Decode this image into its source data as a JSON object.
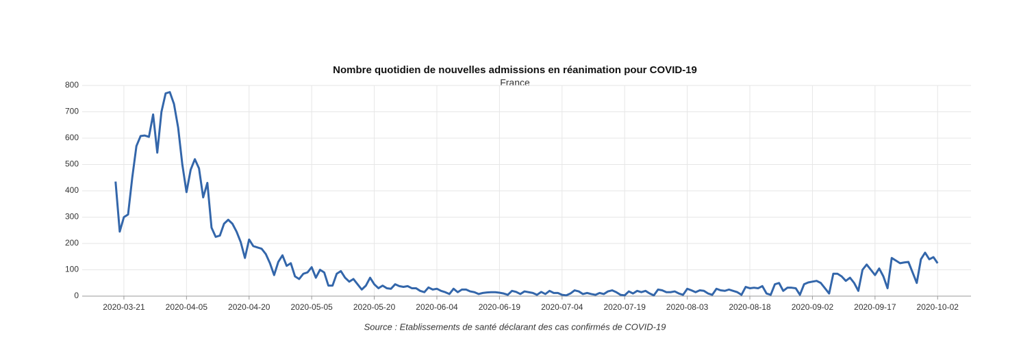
{
  "chart_data": {
    "type": "line",
    "title": "Nombre quotidien de nouvelles admissions en réanimation pour COVID-19",
    "subtitle": "France",
    "source": "Source : Etablissements de santé déclarant des cas confirmés de COVID-19",
    "x": [
      "2020-03-19",
      "2020-03-20",
      "2020-03-21",
      "2020-03-22",
      "2020-03-23",
      "2020-03-24",
      "2020-03-25",
      "2020-03-26",
      "2020-03-27",
      "2020-03-28",
      "2020-03-29",
      "2020-03-30",
      "2020-03-31",
      "2020-04-01",
      "2020-04-02",
      "2020-04-03",
      "2020-04-04",
      "2020-04-05",
      "2020-04-06",
      "2020-04-07",
      "2020-04-08",
      "2020-04-09",
      "2020-04-10",
      "2020-04-11",
      "2020-04-12",
      "2020-04-13",
      "2020-04-14",
      "2020-04-15",
      "2020-04-16",
      "2020-04-17",
      "2020-04-18",
      "2020-04-19",
      "2020-04-20",
      "2020-04-21",
      "2020-04-22",
      "2020-04-23",
      "2020-04-24",
      "2020-04-25",
      "2020-04-26",
      "2020-04-27",
      "2020-04-28",
      "2020-04-29",
      "2020-04-30",
      "2020-05-01",
      "2020-05-02",
      "2020-05-03",
      "2020-05-04",
      "2020-05-05",
      "2020-05-06",
      "2020-05-07",
      "2020-05-08",
      "2020-05-09",
      "2020-05-10",
      "2020-05-11",
      "2020-05-12",
      "2020-05-13",
      "2020-05-14",
      "2020-05-15",
      "2020-05-16",
      "2020-05-17",
      "2020-05-18",
      "2020-05-19",
      "2020-05-20",
      "2020-05-21",
      "2020-05-22",
      "2020-05-23",
      "2020-05-24",
      "2020-05-25",
      "2020-05-26",
      "2020-05-27",
      "2020-05-28",
      "2020-05-29",
      "2020-05-30",
      "2020-05-31",
      "2020-06-01",
      "2020-06-02",
      "2020-06-03",
      "2020-06-04",
      "2020-06-05",
      "2020-06-06",
      "2020-06-07",
      "2020-06-08",
      "2020-06-09",
      "2020-06-10",
      "2020-06-11",
      "2020-06-12",
      "2020-06-13",
      "2020-06-14",
      "2020-06-15",
      "2020-06-16",
      "2020-06-17",
      "2020-06-18",
      "2020-06-19",
      "2020-06-20",
      "2020-06-21",
      "2020-06-22",
      "2020-06-23",
      "2020-06-24",
      "2020-06-25",
      "2020-06-26",
      "2020-06-27",
      "2020-06-28",
      "2020-06-29",
      "2020-06-30",
      "2020-07-01",
      "2020-07-02",
      "2020-07-03",
      "2020-07-04",
      "2020-07-05",
      "2020-07-06",
      "2020-07-07",
      "2020-07-08",
      "2020-07-09",
      "2020-07-10",
      "2020-07-11",
      "2020-07-12",
      "2020-07-13",
      "2020-07-14",
      "2020-07-15",
      "2020-07-16",
      "2020-07-17",
      "2020-07-18",
      "2020-07-19",
      "2020-07-20",
      "2020-07-21",
      "2020-07-22",
      "2020-07-23",
      "2020-07-24",
      "2020-07-25",
      "2020-07-26",
      "2020-07-27",
      "2020-07-28",
      "2020-07-29",
      "2020-07-30",
      "2020-07-31",
      "2020-08-01",
      "2020-08-02",
      "2020-08-03",
      "2020-08-04",
      "2020-08-05",
      "2020-08-06",
      "2020-08-07",
      "2020-08-08",
      "2020-08-09",
      "2020-08-10",
      "2020-08-11",
      "2020-08-12",
      "2020-08-13",
      "2020-08-14",
      "2020-08-15",
      "2020-08-16",
      "2020-08-17",
      "2020-08-18",
      "2020-08-19",
      "2020-08-20",
      "2020-08-21",
      "2020-08-22",
      "2020-08-23",
      "2020-08-24",
      "2020-08-25",
      "2020-08-26",
      "2020-08-27",
      "2020-08-28",
      "2020-08-29",
      "2020-08-30",
      "2020-08-31",
      "2020-09-01",
      "2020-09-02",
      "2020-09-03",
      "2020-09-04",
      "2020-09-05",
      "2020-09-06",
      "2020-09-07",
      "2020-09-08",
      "2020-09-09",
      "2020-09-10",
      "2020-09-11",
      "2020-09-12",
      "2020-09-13",
      "2020-09-14",
      "2020-09-15",
      "2020-09-16",
      "2020-09-17",
      "2020-09-18",
      "2020-09-19",
      "2020-09-20",
      "2020-09-21",
      "2020-09-22",
      "2020-09-23",
      "2020-09-24",
      "2020-09-25",
      "2020-09-26",
      "2020-09-27",
      "2020-09-28",
      "2020-09-29",
      "2020-09-30",
      "2020-10-01",
      "2020-10-02"
    ],
    "values": [
      435,
      245,
      300,
      310,
      450,
      570,
      608,
      610,
      605,
      690,
      545,
      700,
      770,
      775,
      730,
      640,
      500,
      395,
      480,
      520,
      485,
      375,
      430,
      260,
      225,
      230,
      275,
      290,
      275,
      245,
      205,
      145,
      215,
      190,
      185,
      180,
      160,
      125,
      80,
      130,
      155,
      115,
      125,
      75,
      65,
      85,
      90,
      110,
      70,
      100,
      90,
      40,
      40,
      85,
      95,
      70,
      55,
      65,
      45,
      25,
      40,
      70,
      45,
      30,
      40,
      30,
      28,
      45,
      38,
      35,
      38,
      30,
      30,
      20,
      15,
      33,
      25,
      28,
      20,
      15,
      8,
      28,
      15,
      25,
      25,
      18,
      15,
      8,
      12,
      14,
      15,
      15,
      13,
      10,
      5,
      20,
      16,
      8,
      18,
      15,
      12,
      5,
      16,
      8,
      20,
      12,
      12,
      5,
      3,
      10,
      22,
      18,
      8,
      12,
      8,
      5,
      12,
      8,
      18,
      22,
      15,
      5,
      3,
      18,
      10,
      20,
      15,
      20,
      10,
      3,
      25,
      22,
      15,
      15,
      18,
      10,
      5,
      28,
      22,
      15,
      22,
      20,
      10,
      5,
      28,
      22,
      20,
      25,
      20,
      15,
      5,
      35,
      30,
      32,
      30,
      38,
      10,
      5,
      45,
      50,
      20,
      32,
      32,
      30,
      5,
      45,
      52,
      55,
      58,
      50,
      30,
      10,
      85,
      85,
      75,
      58,
      70,
      50,
      20,
      100,
      120,
      100,
      80,
      105,
      75,
      30,
      145,
      135,
      125,
      128,
      130,
      90,
      50,
      140,
      165,
      140,
      148,
      125
    ],
    "color": "#3366aa",
    "xlim": [
      "2020-03-11",
      "2020-10-10"
    ],
    "xticks": [
      "2020-03-21",
      "2020-04-05",
      "2020-04-20",
      "2020-05-05",
      "2020-05-20",
      "2020-06-04",
      "2020-06-19",
      "2020-07-04",
      "2020-07-19",
      "2020-08-03",
      "2020-08-18",
      "2020-09-02",
      "2020-09-17",
      "2020-10-02"
    ],
    "ylim": [
      0,
      800
    ],
    "yticks": [
      0,
      100,
      200,
      300,
      400,
      500,
      600,
      700,
      800
    ],
    "grid": true
  }
}
